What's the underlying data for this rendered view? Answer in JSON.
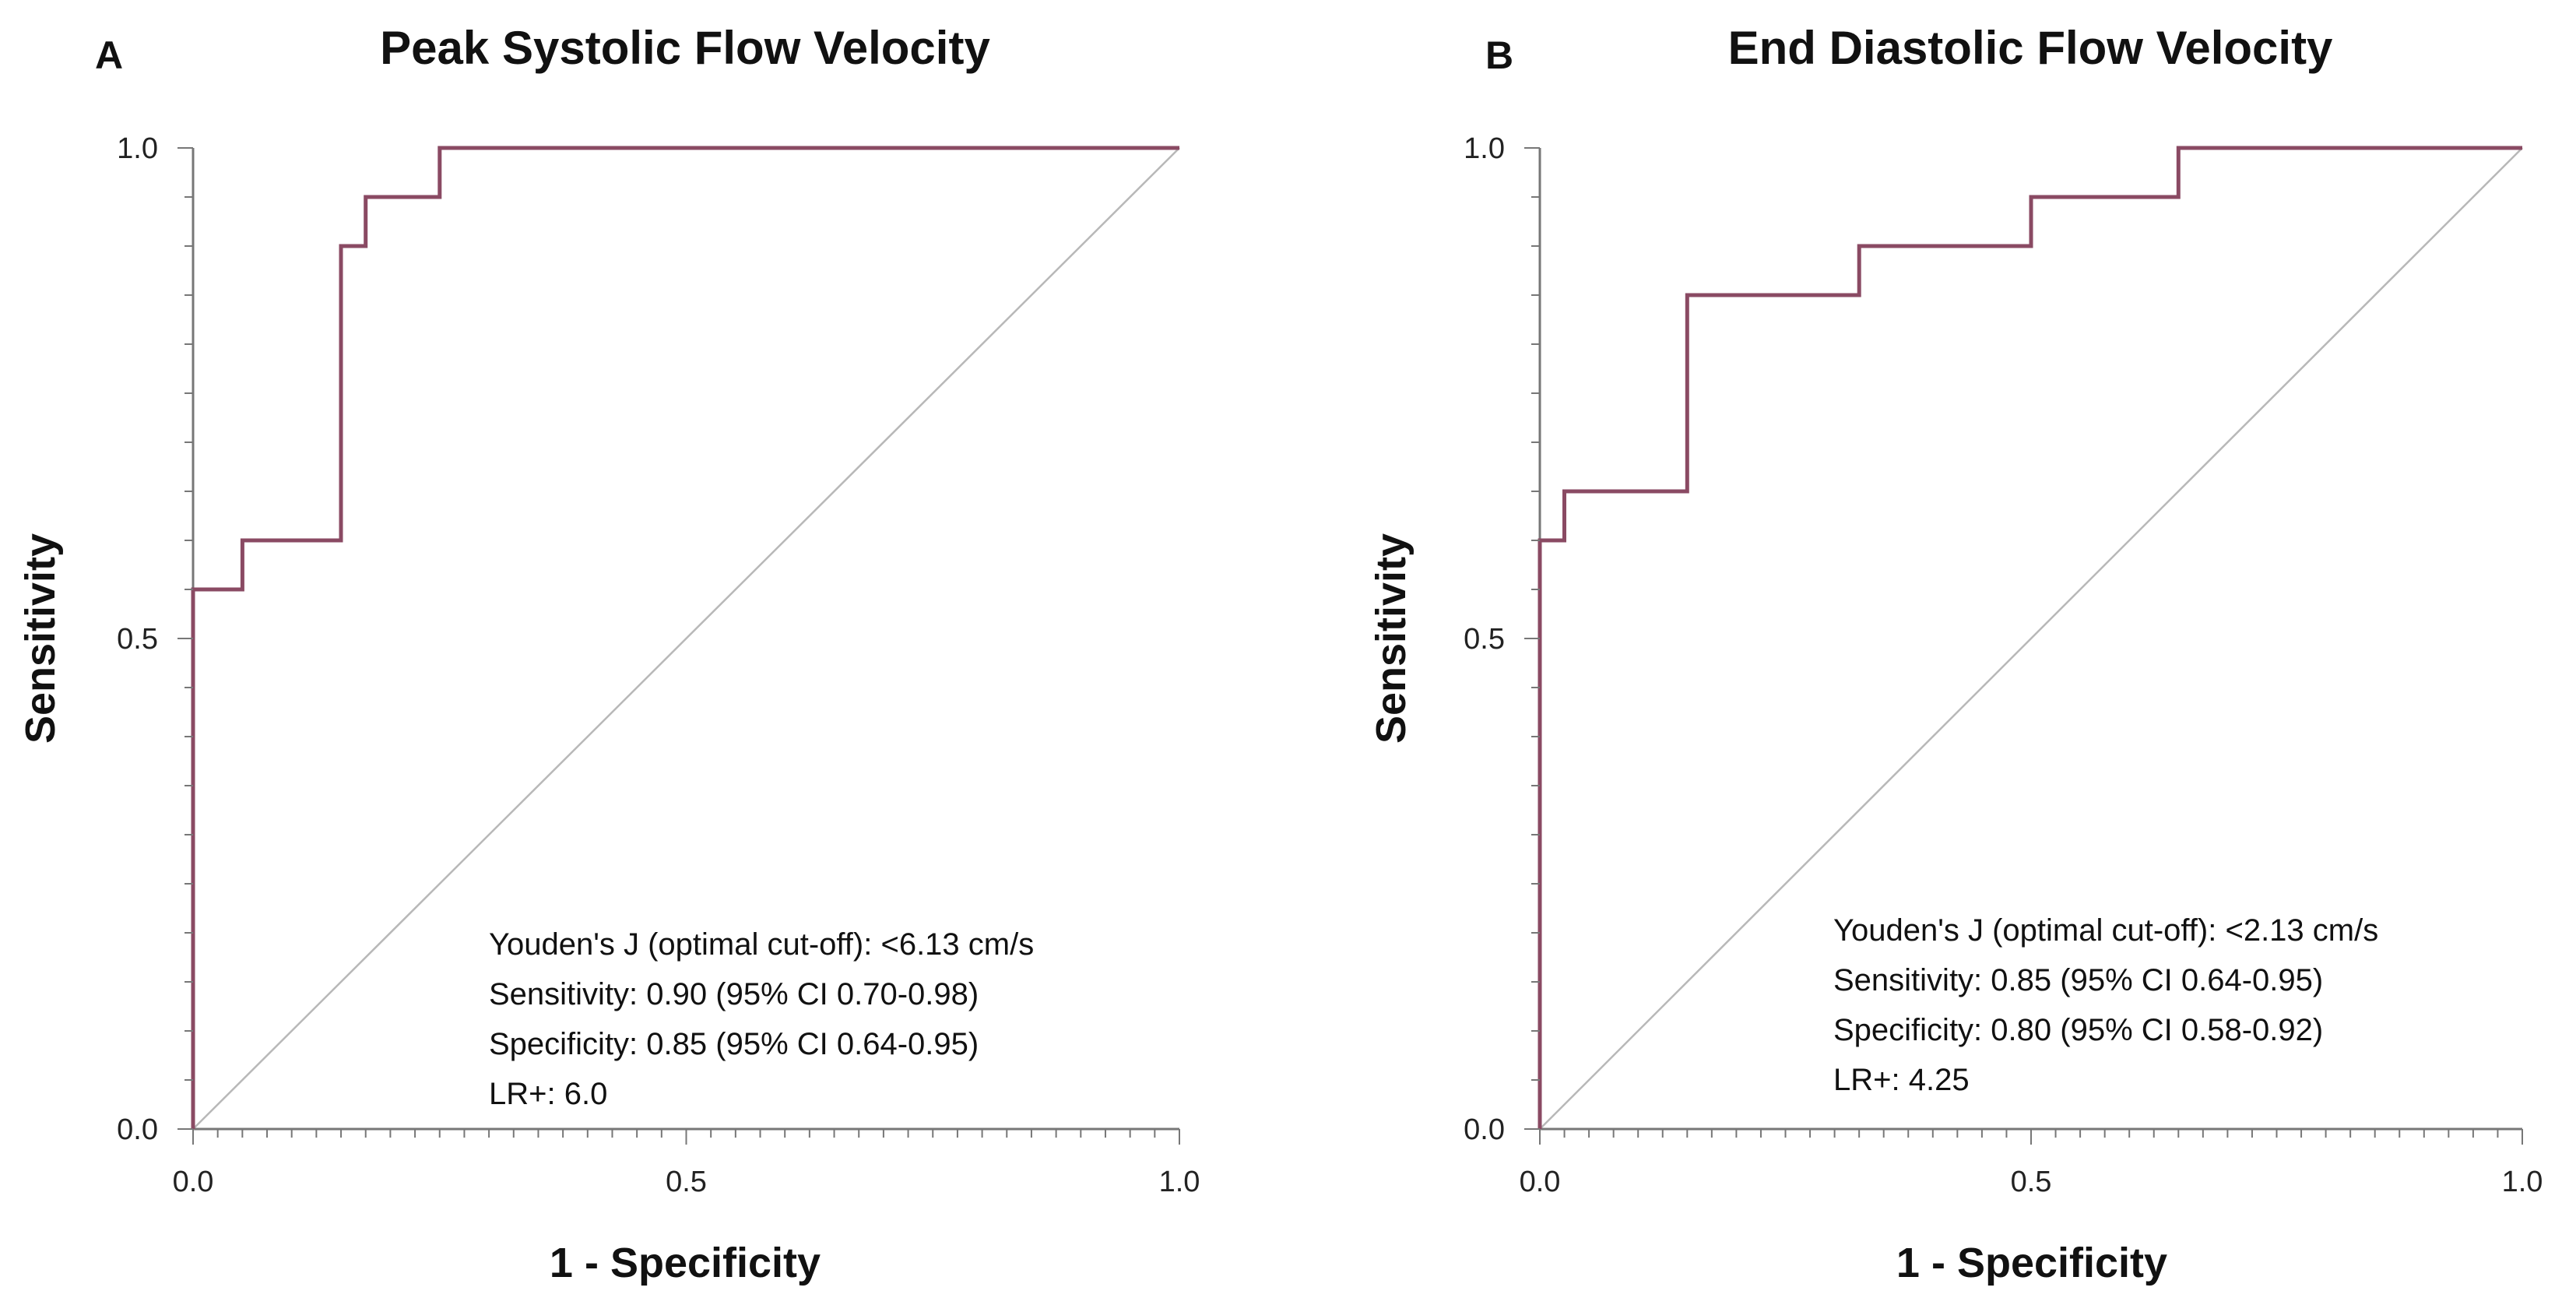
{
  "chart_data": [
    {
      "type": "line",
      "panel_label": "A",
      "title": "Peak Systolic Flow Velocity",
      "xlabel": "1 - Specificity",
      "ylabel": "Sensitivity",
      "xlim": [
        0,
        1
      ],
      "ylim": [
        0,
        1
      ],
      "x_ticks": [
        "0.0",
        "0.5",
        "1.0"
      ],
      "y_ticks": [
        "0.0",
        "0.5",
        "1.0"
      ],
      "grid": false,
      "series": [
        {
          "color": "#8a4a63",
          "x": [
            0,
            0,
            0.05,
            0.05,
            0.15,
            0.15,
            0.175,
            0.175,
            0.25,
            0.25,
            1.0
          ],
          "y": [
            0,
            0.55,
            0.55,
            0.6,
            0.6,
            0.9,
            0.9,
            0.95,
            0.95,
            1.0,
            1.0
          ]
        },
        {
          "color": "#b8b8b8",
          "x": [
            0,
            1
          ],
          "y": [
            0,
            1
          ]
        }
      ],
      "annotations": [
        "Youden's J (optimal cut-off): <6.13 cm/s",
        "Sensitivity: 0.90 (95% CI 0.70-0.98)",
        "Specificity: 0.85 (95% CI 0.64-0.95)",
        "LR+: 6.0"
      ]
    },
    {
      "type": "line",
      "panel_label": "B",
      "title": "End Diastolic Flow Velocity",
      "xlabel": "1 - Specificity",
      "ylabel": "Sensitivity",
      "xlim": [
        0,
        1
      ],
      "ylim": [
        0,
        1
      ],
      "x_ticks": [
        "0.0",
        "0.5",
        "1.0"
      ],
      "y_ticks": [
        "0.0",
        "0.5",
        "1.0"
      ],
      "grid": false,
      "series": [
        {
          "color": "#8a4a63",
          "x": [
            0,
            0,
            0.025,
            0.025,
            0.15,
            0.15,
            0.325,
            0.325,
            0.5,
            0.5,
            0.65,
            0.65,
            1.0
          ],
          "y": [
            0,
            0.6,
            0.6,
            0.65,
            0.65,
            0.85,
            0.85,
            0.9,
            0.9,
            0.95,
            0.95,
            1.0,
            1.0
          ]
        },
        {
          "color": "#b8b8b8",
          "x": [
            0,
            1
          ],
          "y": [
            0,
            1
          ]
        }
      ],
      "annotations": [
        "Youden's J (optimal cut-off): <2.13 cm/s",
        "Sensitivity: 0.85 (95% CI 0.64-0.95)",
        "Specificity: 0.80 (95% CI 0.58-0.92)",
        "LR+: 4.25"
      ]
    }
  ]
}
